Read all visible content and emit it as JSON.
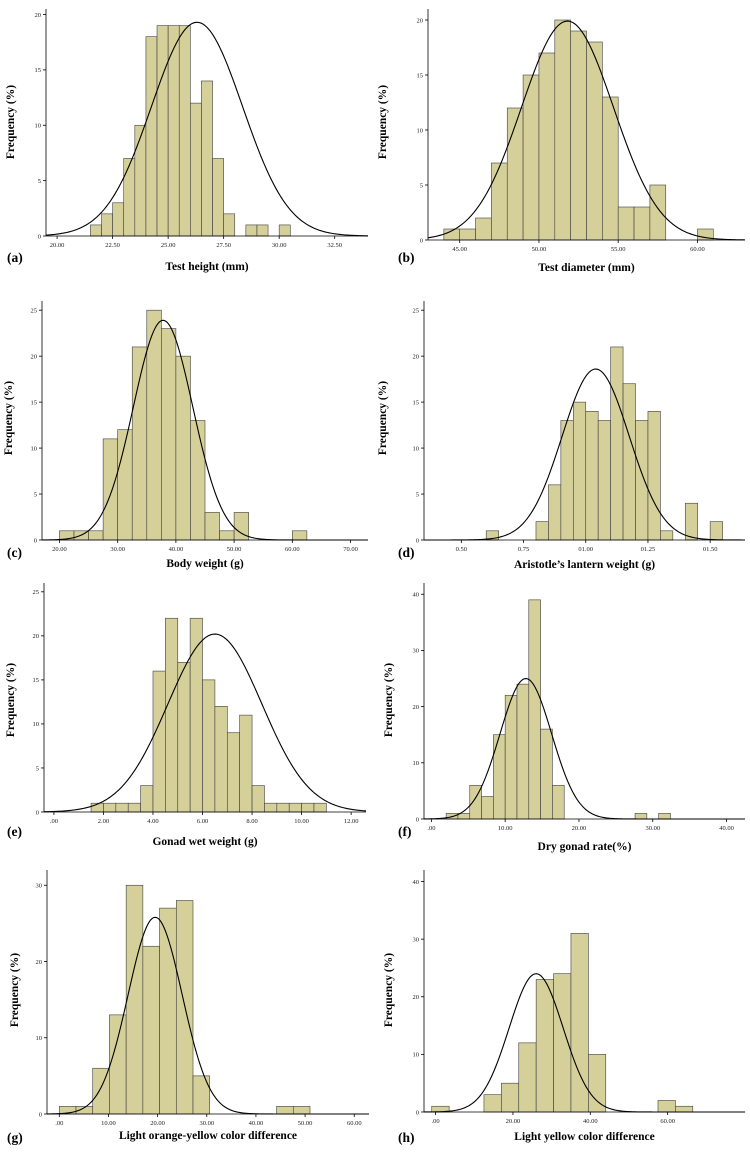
{
  "chart_data": [
    {
      "panel_label": "(a)",
      "type": "bar",
      "xlabel": "Test height (mm)",
      "ylabel": "Frequency (%)",
      "xlim": [
        19.5,
        34.0
      ],
      "ylim": [
        0,
        20.5
      ],
      "xticks": [
        20.0,
        22.5,
        25.0,
        27.5,
        30.0,
        32.5
      ],
      "xtick_labels": [
        "20.00",
        "22.50",
        "25.00",
        "27.50",
        "30.00",
        "32.50"
      ],
      "yticks": [
        0,
        5,
        10,
        15,
        20
      ],
      "ytick_labels": [
        "0",
        "5",
        "10",
        "15",
        "20"
      ],
      "bin_start": 21.5,
      "bin_width": 0.5,
      "empty_bins": [],
      "values": [
        1,
        2,
        3,
        7,
        10,
        18,
        19,
        19,
        19,
        12,
        14,
        7,
        2,
        0,
        1,
        1,
        0,
        1
      ],
      "normal_curve": {
        "mean": 26.3,
        "sd": 2.05,
        "peak": 19.3
      }
    },
    {
      "panel_label": "(b)",
      "type": "bar",
      "xlabel": "Test diameter (mm)",
      "ylabel": "Frequency (%)",
      "xlim": [
        43.0,
        63.0
      ],
      "ylim": [
        0,
        21
      ],
      "xticks": [
        45.0,
        50.0,
        55.0,
        60.0
      ],
      "xtick_labels": [
        "45.00",
        "50.00",
        "55.00",
        "60.00"
      ],
      "yticks": [
        0,
        5,
        10,
        15,
        20
      ],
      "ytick_labels": [
        "0",
        "5",
        "10",
        "15",
        "20"
      ],
      "bin_start": 44.0,
      "bin_width": 1.0,
      "empty_bins": [],
      "values": [
        1,
        1,
        2,
        7,
        12,
        15,
        17,
        20,
        19,
        18,
        13,
        3,
        3,
        5,
        0,
        0,
        1
      ],
      "normal_curve": {
        "mean": 51.8,
        "sd": 2.9,
        "peak": 19.9
      }
    },
    {
      "panel_label": "(c)",
      "type": "bar",
      "xlabel": "Body weight (g)",
      "ylabel": "Frequency (%)",
      "xlim": [
        17.0,
        73.0
      ],
      "ylim": [
        0,
        26
      ],
      "xticks": [
        20.0,
        30.0,
        40.0,
        50.0,
        60.0,
        70.0
      ],
      "xtick_labels": [
        "20.00",
        "30.00",
        "40.00",
        "50.00",
        "60.00",
        "70.00"
      ],
      "yticks": [
        0,
        5,
        10,
        15,
        20,
        25
      ],
      "ytick_labels": [
        "0",
        "5",
        "10",
        "15",
        "20",
        "25"
      ],
      "bin_start": 20.0,
      "bin_width": 2.5,
      "empty_bins": [],
      "values": [
        1,
        1,
        1,
        11,
        12,
        21,
        25,
        23,
        20,
        13,
        3,
        1,
        3,
        0,
        0,
        0,
        1
      ],
      "normal_curve": {
        "mean": 37.8,
        "sd": 5.1,
        "peak": 23.9
      }
    },
    {
      "panel_label": "(d)",
      "type": "bar",
      "xlabel": "Aristotle’s lantern weight (g)",
      "ylabel": "Frequency (%)",
      "xlim": [
        0.35,
        1.64
      ],
      "ylim": [
        0,
        26
      ],
      "xticks": [
        0.5,
        0.75,
        1.0,
        1.25,
        1.5
      ],
      "xtick_labels": [
        "0.50",
        "0.75",
        "01.00",
        "01.25",
        "01.50"
      ],
      "yticks": [
        0,
        5,
        10,
        15,
        20,
        25
      ],
      "ytick_labels": [
        "0",
        "5",
        "10",
        "15",
        "20",
        "25"
      ],
      "bin_start": 0.6,
      "bin_width": 0.05,
      "empty_bins": [
        1,
        2,
        3
      ],
      "values": [
        1,
        0,
        0,
        0,
        2,
        6,
        13,
        15,
        14,
        13,
        21,
        17,
        13,
        14,
        1,
        0,
        4,
        0,
        2
      ],
      "normal_curve": {
        "mean": 1.04,
        "sd": 0.135,
        "peak": 18.6
      }
    },
    {
      "panel_label": "(e)",
      "type": "bar",
      "xlabel": "Gonad wet weight (g)",
      "ylabel": "Frequency (%)",
      "xlim": [
        -0.4,
        12.6
      ],
      "ylim": [
        0,
        26
      ],
      "xticks": [
        0,
        2,
        4,
        6,
        8,
        10,
        12
      ],
      "xtick_labels": [
        ".00",
        "2.00",
        "4.00",
        "6.00",
        "8.00",
        "10.00",
        "12.00"
      ],
      "yticks": [
        0,
        5,
        10,
        15,
        20,
        25
      ],
      "ytick_labels": [
        "0",
        "5",
        "10",
        "15",
        "20",
        "25"
      ],
      "bin_start": 1.5,
      "bin_width": 0.5,
      "empty_bins": [],
      "values": [
        1,
        1,
        1,
        1,
        3,
        16,
        22,
        17,
        22,
        15,
        12,
        9,
        11,
        3,
        1,
        1,
        1,
        1,
        1
      ],
      "normal_curve": {
        "mean": 6.5,
        "sd": 1.9,
        "peak": 20.2
      }
    },
    {
      "panel_label": "(f)",
      "type": "bar",
      "xlabel": "Dry gonad rate(%)",
      "ylabel": "Frequency (%)",
      "xlim": [
        -1.0,
        42.5
      ],
      "ylim": [
        0,
        42
      ],
      "xticks": [
        0,
        10,
        20,
        30,
        40
      ],
      "xtick_labels": [
        ".00",
        "10.00",
        "20.00",
        "30.00",
        "40.00"
      ],
      "yticks": [
        0,
        10,
        20,
        30,
        40
      ],
      "ytick_labels": [
        "0",
        "10",
        "20",
        "30",
        "40"
      ],
      "bin_start": 2.0,
      "bin_width": 1.6,
      "empty_bins": [],
      "values": [
        1,
        1,
        6,
        4,
        15,
        22,
        24,
        39,
        16,
        6,
        0,
        0,
        0,
        0,
        0,
        0,
        1,
        0,
        1
      ],
      "normal_curve": {
        "mean": 12.8,
        "sd": 3.5,
        "peak": 25.0
      }
    },
    {
      "panel_label": "(g)",
      "type": "bar",
      "xlabel": "Light orange-yellow color difference",
      "ylabel": "Frequency (%)",
      "xlim": [
        -2.5,
        63.0
      ],
      "ylim": [
        0,
        32
      ],
      "xticks": [
        0,
        10,
        20,
        30,
        40,
        50,
        60
      ],
      "xtick_labels": [
        ".00",
        "10.00",
        "20.00",
        "30.00",
        "40.00",
        "50.00",
        "60.00"
      ],
      "yticks": [
        0,
        10,
        20,
        30
      ],
      "ytick_labels": [
        "0",
        "10",
        "20",
        "30"
      ],
      "bin_start": 0.0,
      "bin_width": 3.4,
      "empty_bins": [],
      "values": [
        1,
        1,
        6,
        13,
        30,
        22,
        27,
        28,
        5,
        0,
        0,
        0,
        0,
        1,
        1
      ],
      "normal_curve": {
        "mean": 19.5,
        "sd": 5.5,
        "peak": 25.8
      }
    },
    {
      "panel_label": "(h)",
      "type": "bar",
      "xlabel": "Light yellow color difference",
      "ylabel": "Frequency (%)",
      "xlim": [
        -3.0,
        80.0
      ],
      "ylim": [
        0,
        42
      ],
      "xticks": [
        0,
        20,
        40,
        60
      ],
      "xtick_labels": [
        ".00",
        "20.00",
        "40.00",
        "60.00"
      ],
      "yticks": [
        0,
        10,
        20,
        30,
        40
      ],
      "ytick_labels": [
        "0",
        "10",
        "20",
        "30",
        "40"
      ],
      "bin_start": -1.0,
      "bin_width": 4.5,
      "empty_bins": [
        1,
        2
      ],
      "values": [
        1,
        0,
        0,
        3,
        5,
        12,
        23,
        24,
        31,
        10,
        0,
        0,
        0,
        2,
        1
      ],
      "normal_curve": {
        "mean": 26.0,
        "sd": 7.0,
        "peak": 24.0
      }
    }
  ]
}
